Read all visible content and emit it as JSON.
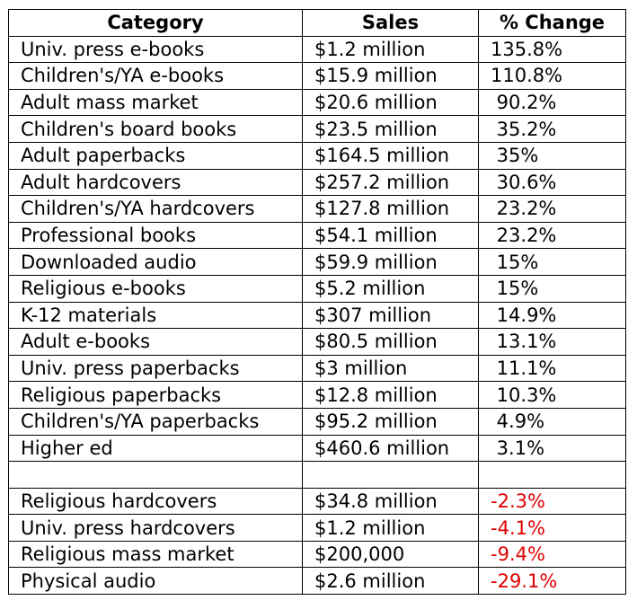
{
  "table": {
    "headers": [
      "Category",
      "Sales",
      "% Change"
    ],
    "colors": {
      "negative": "#e00000",
      "text": "#000000"
    },
    "rows": [
      {
        "category": "Univ. press e-books",
        "sales": "$1.2 million",
        "change": "135.8%",
        "negative": false
      },
      {
        "category": "Children's/YA e-books",
        "sales": "$15.9 million",
        "change": "110.8%",
        "negative": false
      },
      {
        "category": "Adult mass market",
        "sales": "$20.6 million",
        "change": " 90.2%",
        "negative": false
      },
      {
        "category": "Children's board books",
        "sales": "$23.5 million",
        "change": " 35.2%",
        "negative": false
      },
      {
        "category": "Adult paperbacks",
        "sales": "$164.5 million",
        "change": " 35%",
        "negative": false
      },
      {
        "category": "Adult hardcovers",
        "sales": "$257.2 million",
        "change": " 30.6%",
        "negative": false
      },
      {
        "category": "Children's/YA hardcovers",
        "sales": "$127.8 million",
        "change": " 23.2%",
        "negative": false
      },
      {
        "category": "Professional books",
        "sales": "$54.1 million",
        "change": " 23.2%",
        "negative": false
      },
      {
        "category": "Downloaded audio",
        "sales": "$59.9 million",
        "change": " 15%",
        "negative": false
      },
      {
        "category": "Religious e-books",
        "sales": "$5.2 million",
        "change": " 15%",
        "negative": false
      },
      {
        "category": "K-12 materials",
        "sales": "$307 million",
        "change": " 14.9%",
        "negative": false
      },
      {
        "category": "Adult e-books",
        "sales": "$80.5 million",
        "change": " 13.1%",
        "negative": false
      },
      {
        "category": "Univ. press paperbacks",
        "sales": "$3 million",
        "change": " 11.1%",
        "negative": false
      },
      {
        "category": "Religious paperbacks",
        "sales": "$12.8 million",
        "change": " 10.3%",
        "negative": false
      },
      {
        "category": "Children's/YA paperbacks",
        "sales": "$95.2 million",
        "change": " 4.9%",
        "negative": false
      },
      {
        "category": "Higher ed",
        "sales": "$460.6 million",
        "change": " 3.1%",
        "negative": false
      },
      {
        "category": "",
        "sales": "",
        "change": "",
        "negative": false
      },
      {
        "category": "Religious hardcovers",
        "sales": "$34.8 million",
        "change": "-2.3%",
        "negative": true
      },
      {
        "category": "Univ. press hardcovers",
        "sales": "$1.2 million",
        "change": "-4.1%",
        "negative": true
      },
      {
        "category": "Religious mass market",
        "sales": "$200,000",
        "change": "-9.4%",
        "negative": true
      },
      {
        "category": "Physical audio",
        "sales": "$2.6 million",
        "change": "-29.1%",
        "negative": true
      }
    ]
  }
}
